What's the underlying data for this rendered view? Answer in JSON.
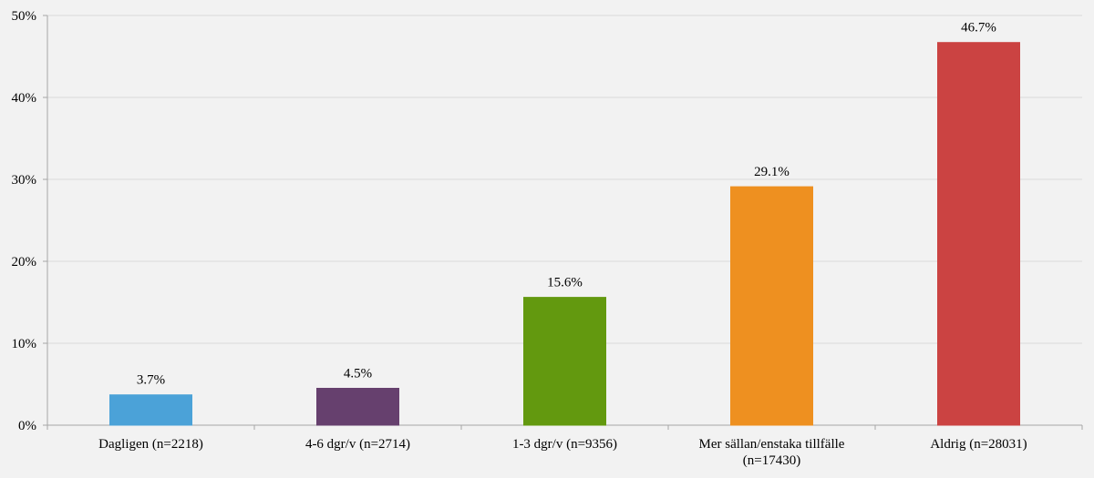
{
  "chart_data": {
    "type": "bar",
    "categories": [
      [
        "Dagligen (n=2218)"
      ],
      [
        "4-6 dgr/v (n=2714)"
      ],
      [
        "1-3 dgr/v (n=9356)"
      ],
      [
        "Mer sällan/enstaka tillfälle",
        "(n=17430)"
      ],
      [
        "Aldrig (n=28031)"
      ]
    ],
    "values": [
      3.7,
      4.5,
      15.6,
      29.1,
      46.7
    ],
    "value_labels": [
      "3.7%",
      "4.5%",
      "15.6%",
      "29.1%",
      "46.7%"
    ],
    "colors": [
      "#4ba2d8",
      "#66406e",
      "#63990f",
      "#ee9020",
      "#cb4342"
    ],
    "ylim": [
      0,
      50
    ],
    "yticks": [
      0,
      10,
      20,
      30,
      40,
      50
    ],
    "ytick_labels": [
      "0%",
      "10%",
      "20%",
      "30%",
      "40%",
      "50%"
    ],
    "grid": true,
    "title": "",
    "xlabel": "",
    "ylabel": ""
  }
}
